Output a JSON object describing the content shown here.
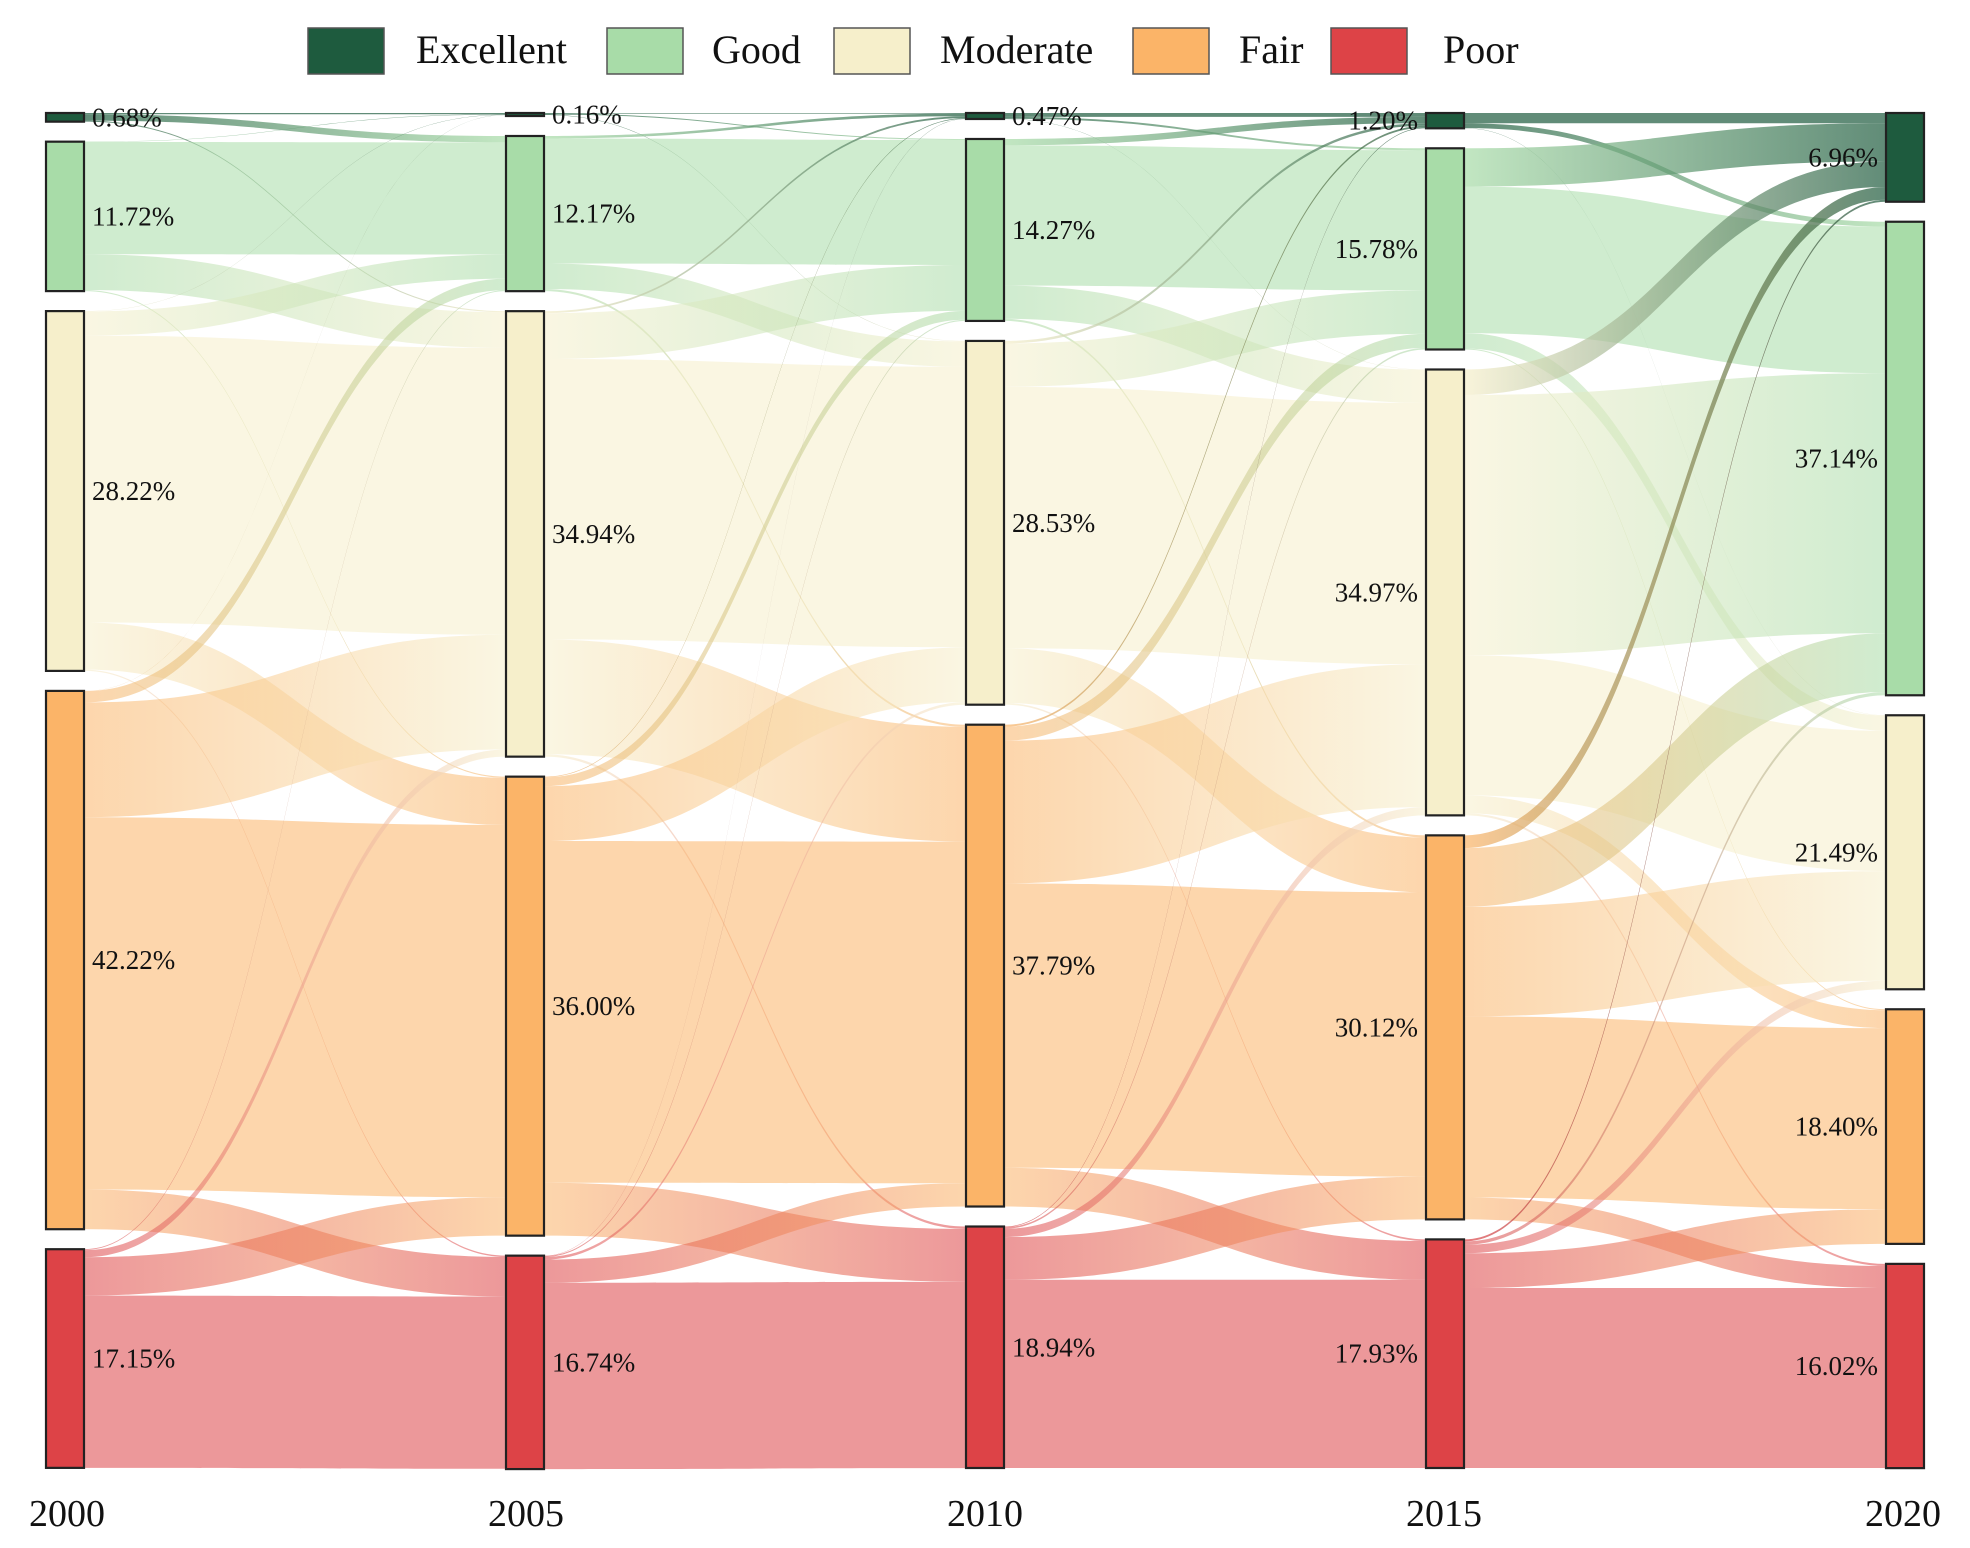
{
  "chart_data": {
    "type": "sankey",
    "title": "",
    "years": [
      "2000",
      "2005",
      "2010",
      "2015",
      "2020"
    ],
    "categories": [
      "Excellent",
      "Good",
      "Moderate",
      "Fair",
      "Poor"
    ],
    "colors": {
      "Excellent": "#1e5b3e",
      "Good": "#a8dca8",
      "Moderate": "#f6efcb",
      "Fair": "#fbb468",
      "Poor": "#dd4347"
    },
    "legend": [
      "Excellent",
      "Good",
      "Moderate",
      "Fair",
      "Poor"
    ],
    "legend_position": "top-center",
    "nodes": [
      {
        "year": "2000",
        "values": [
          0.68,
          11.72,
          28.22,
          42.22,
          17.15
        ],
        "labels": [
          "0.68%",
          "11.72%",
          "28.22%",
          "42.22%",
          "17.15%"
        ]
      },
      {
        "year": "2005",
        "values": [
          0.16,
          12.17,
          34.94,
          36.0,
          16.74
        ],
        "labels": [
          "0.16%",
          "12.17%",
          "34.94%",
          "36.00%",
          "16.74%"
        ]
      },
      {
        "year": "2010",
        "values": [
          0.47,
          14.27,
          28.53,
          37.79,
          18.94
        ],
        "labels": [
          "0.47%",
          "14.27%",
          "28.53%",
          "37.79%",
          "18.94%"
        ]
      },
      {
        "year": "2015",
        "values": [
          1.2,
          15.78,
          34.97,
          30.12,
          17.93
        ],
        "labels": [
          "1.20%",
          "15.78%",
          "34.97%",
          "30.12%",
          "17.93%"
        ]
      },
      {
        "year": "2020",
        "values": [
          6.96,
          37.14,
          21.49,
          18.4,
          16.02
        ],
        "labels": [
          "6.96%",
          "37.14%",
          "21.49%",
          "18.40%",
          "16.02%"
        ]
      }
    ],
    "transitions": [
      {
        "from": "2000",
        "to": "2005",
        "matrix": [
          [
            0.1,
            0.5,
            0.08,
            0.0,
            0.0
          ],
          [
            0.03,
            8.8,
            2.8,
            0.09,
            0.0
          ],
          [
            0.02,
            1.9,
            22.5,
            3.7,
            0.1
          ],
          [
            0.01,
            0.9,
            9.0,
            29.2,
            3.1
          ],
          [
            0.0,
            0.07,
            0.56,
            3.01,
            13.51
          ]
        ]
      },
      {
        "from": "2005",
        "to": "2010",
        "matrix": [
          [
            0.05,
            0.08,
            0.03,
            0.0,
            0.0
          ],
          [
            0.2,
            9.8,
            2.0,
            0.17,
            0.0
          ],
          [
            0.15,
            3.6,
            22.0,
            9.0,
            0.19
          ],
          [
            0.05,
            0.7,
            4.3,
            26.8,
            4.15
          ],
          [
            0.02,
            0.09,
            0.2,
            1.82,
            14.61
          ]
        ]
      },
      {
        "from": "2010",
        "to": "2015",
        "matrix": [
          [
            0.3,
            0.15,
            0.02,
            0.0,
            0.0
          ],
          [
            0.5,
            11.0,
            2.6,
            0.17,
            0.0
          ],
          [
            0.2,
            3.4,
            20.5,
            4.3,
            0.13
          ],
          [
            0.15,
            1.1,
            11.2,
            22.3,
            3.04
          ],
          [
            0.05,
            0.13,
            0.65,
            3.35,
            14.76
          ]
        ]
      },
      {
        "from": "2015",
        "to": "2020",
        "matrix": [
          [
            0.8,
            0.38,
            0.02,
            0.0,
            0.0
          ],
          [
            3.0,
            11.5,
            1.2,
            0.08,
            0.0
          ],
          [
            2.0,
            20.4,
            11.0,
            1.4,
            0.17
          ],
          [
            1.0,
            4.6,
            8.6,
            14.2,
            1.72
          ],
          [
            0.16,
            0.26,
            0.67,
            2.72,
            14.12
          ]
        ]
      }
    ]
  }
}
